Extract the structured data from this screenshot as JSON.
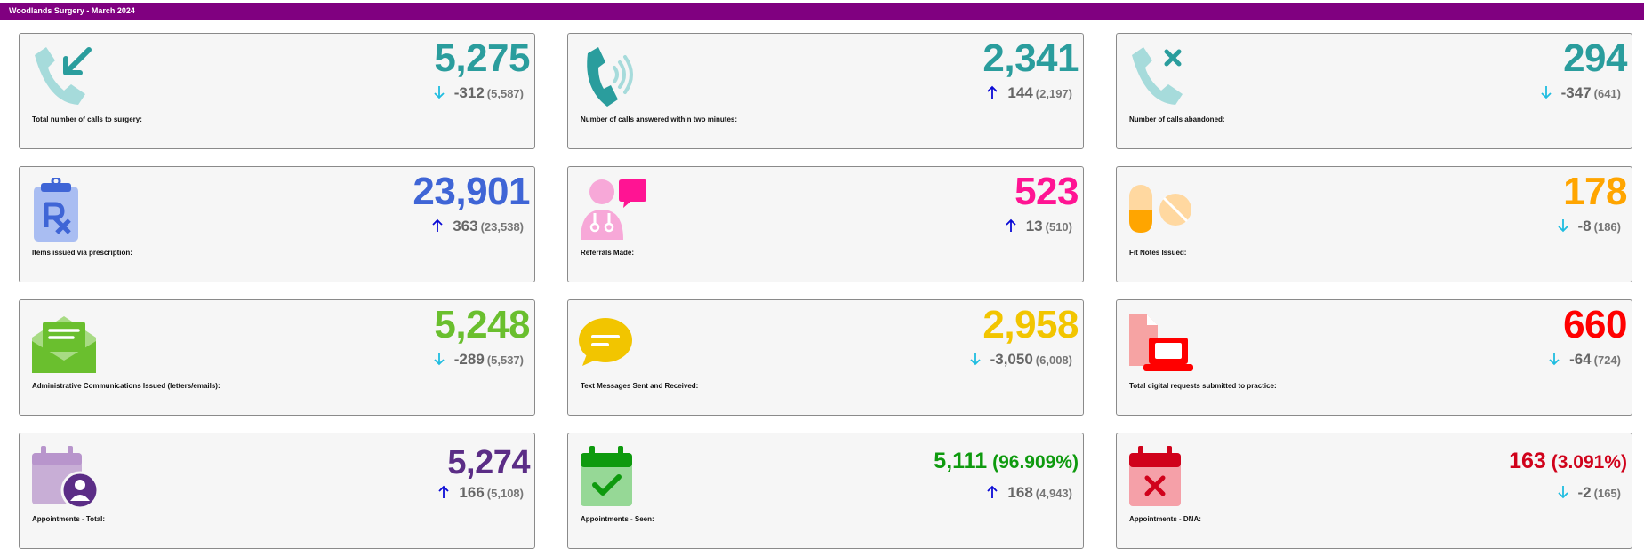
{
  "header": {
    "title": "Woodlands Surgery - March 2024"
  },
  "cards": [
    {
      "label": "Total number of calls to surgery:",
      "value": "5,275",
      "pct": "",
      "delta": "-312",
      "prev": "(5,587)",
      "trend": "down",
      "value_color": "#2a9d9d",
      "icon": "phone-incoming-icon"
    },
    {
      "label": "Number of calls answered within two minutes:",
      "value": "2,341",
      "pct": "",
      "delta": "144",
      "prev": "(2,197)",
      "trend": "up",
      "value_color": "#2a9d9d",
      "icon": "phone-ringing-icon"
    },
    {
      "label": "Number of calls abandoned:",
      "value": "294",
      "pct": "",
      "delta": "-347",
      "prev": "(641)",
      "trend": "down",
      "value_color": "#2a9d9d",
      "icon": "phone-missed-icon"
    },
    {
      "label": "Items issued via prescription:",
      "value": "23,901",
      "pct": "",
      "delta": "363",
      "prev": "(23,538)",
      "trend": "up",
      "value_color": "#3f65d6",
      "icon": "prescription-clipboard-icon"
    },
    {
      "label": "Referrals Made:",
      "value": "523",
      "pct": "",
      "delta": "13",
      "prev": "(510)",
      "trend": "up",
      "value_color": "#ff1493",
      "icon": "doctor-chat-icon"
    },
    {
      "label": "Fit Notes Issued:",
      "value": "178",
      "pct": "",
      "delta": "-8",
      "prev": "(186)",
      "trend": "down",
      "value_color": "#ffa500",
      "icon": "pills-icon"
    },
    {
      "label": "Administrative Communications Issued (letters/emails):",
      "value": "5,248",
      "pct": "",
      "delta": "-289",
      "prev": "(5,537)",
      "trend": "down",
      "value_color": "#6abf2e",
      "icon": "envelope-open-icon"
    },
    {
      "label": "Text Messages Sent and Received:",
      "value": "2,958",
      "pct": "",
      "delta": "-3,050",
      "prev": "(6,008)",
      "trend": "down",
      "value_color": "#f2c500",
      "icon": "chat-bubble-icon"
    },
    {
      "label": "Total digital requests submitted to practice:",
      "value": "660",
      "pct": "",
      "delta": "-64",
      "prev": "(724)",
      "trend": "down",
      "value_color": "#ff0000",
      "icon": "file-laptop-icon"
    },
    {
      "label": "Appointments - Total:",
      "value": "5,274",
      "pct": "",
      "delta": "166",
      "prev": "(5,108)",
      "trend": "up",
      "value_color": "#5b2d86",
      "icon": "calendar-user-icon"
    },
    {
      "label": "Appointments - Seen:",
      "value": "5,111",
      "pct": "(96.909%)",
      "delta": "168",
      "prev": "(4,943)",
      "trend": "up",
      "value_color": "#0e9a0e",
      "icon": "calendar-check-icon"
    },
    {
      "label": "Appointments - DNA:",
      "value": "163",
      "pct": "(3.091%)",
      "delta": "-2",
      "prev": "(165)",
      "trend": "down",
      "value_color": "#d0021b",
      "icon": "calendar-x-icon"
    }
  ],
  "colors": {
    "header_bg": "#800080",
    "arrow_up": "#0a0ad6",
    "arrow_down": "#1fbde0"
  }
}
